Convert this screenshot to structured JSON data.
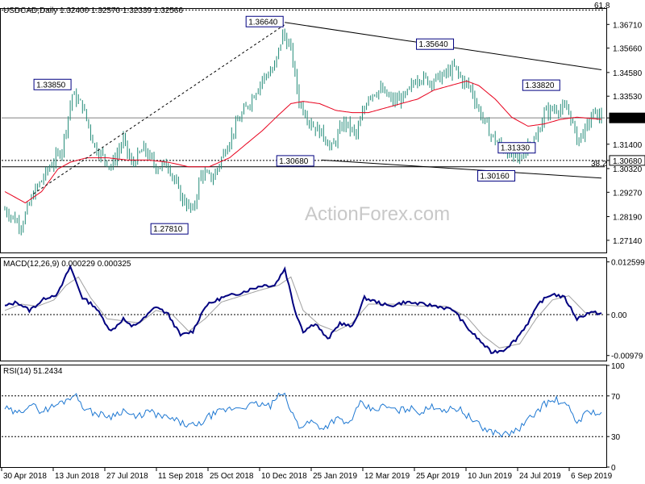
{
  "header": {
    "price_title": "USDCAD,Daily  1.32400  1.32570  1.32339  1.32566",
    "macd_title": "MACD(12,26,9) 0.000229 0.000325",
    "rsi_title": "RSI(14) 51.2434",
    "fib_618": "61.8",
    "fib_382": "38.2",
    "watermark": "ActionForex.com"
  },
  "colors": {
    "candle": "#228b78",
    "ma": "#e8001c",
    "macd": "#000080",
    "signal": "#a0a0a0",
    "rsi": "#1e78d2",
    "trend": "#000000",
    "label_box": "#000080",
    "grid_dot": "#000000"
  },
  "chart_data": [
    {
      "type": "candlestick",
      "panel": "price",
      "ylim": [
        1.266,
        1.374
      ],
      "y_ticks": [
        "1.36710",
        "1.35660",
        "1.34580",
        "1.33530",
        "1.32566",
        "1.31400",
        "1.30680",
        "1.30320",
        "1.29270",
        "1.28190",
        "1.27140"
      ],
      "y_tick_values": [
        1.3671,
        1.3566,
        1.3458,
        1.3353,
        1.32566,
        1.314,
        1.3068,
        1.3032,
        1.2927,
        1.2819,
        1.2714
      ],
      "current_price": "1.32566",
      "level_1_3068": "1.30680",
      "x_labels": [
        "30 Apr 2018",
        "13 Jun 2018",
        "27 Jul 2018",
        "11 Sep 2018",
        "25 Oct 2018",
        "10 Dec 2018",
        "25 Jan 2019",
        "12 Mar 2019",
        "25 Apr 2019",
        "10 Jun 2019",
        "24 Jul 2019",
        "6 Sep 2019"
      ],
      "swing_labels": [
        {
          "text": "1.36640",
          "date": "31 Dec 2018",
          "value": 1.3664
        },
        {
          "text": "1.33850",
          "date": "27 Jun 2018",
          "value": 1.3385
        },
        {
          "text": "1.27810",
          "date": "1 Oct 2018",
          "value": 1.2781
        },
        {
          "text": "1.30680",
          "date": "31 Jan 2019",
          "value": 1.3068
        },
        {
          "text": "1.35640",
          "date": "2 May 2019",
          "value": 1.3564
        },
        {
          "text": "1.30160",
          "date": "19 Jul 2019",
          "value": 1.3016
        },
        {
          "text": "1.33820",
          "date": "26 Aug 2019",
          "value": 1.3382
        },
        {
          "text": "1.31330",
          "date": "2 Sep 2019",
          "value": 1.3133
        }
      ],
      "anchors": [
        {
          "i": 0,
          "v": 1.285
        },
        {
          "i": 8,
          "v": 1.278
        },
        {
          "i": 14,
          "v": 1.292
        },
        {
          "i": 22,
          "v": 1.304
        },
        {
          "i": 28,
          "v": 1.312
        },
        {
          "i": 33,
          "v": 1.336
        },
        {
          "i": 38,
          "v": 1.331
        },
        {
          "i": 44,
          "v": 1.313
        },
        {
          "i": 52,
          "v": 1.304
        },
        {
          "i": 58,
          "v": 1.316
        },
        {
          "i": 62,
          "v": 1.305
        },
        {
          "i": 68,
          "v": 1.312
        },
        {
          "i": 74,
          "v": 1.304
        },
        {
          "i": 80,
          "v": 1.305
        },
        {
          "i": 86,
          "v": 1.291
        },
        {
          "i": 92,
          "v": 1.284
        },
        {
          "i": 96,
          "v": 1.301
        },
        {
          "i": 102,
          "v": 1.299
        },
        {
          "i": 108,
          "v": 1.312
        },
        {
          "i": 114,
          "v": 1.324
        },
        {
          "i": 120,
          "v": 1.333
        },
        {
          "i": 126,
          "v": 1.343
        },
        {
          "i": 132,
          "v": 1.348
        },
        {
          "i": 136,
          "v": 1.363
        },
        {
          "i": 140,
          "v": 1.356
        },
        {
          "i": 144,
          "v": 1.333
        },
        {
          "i": 150,
          "v": 1.323
        },
        {
          "i": 156,
          "v": 1.318
        },
        {
          "i": 160,
          "v": 1.312
        },
        {
          "i": 166,
          "v": 1.324
        },
        {
          "i": 172,
          "v": 1.318
        },
        {
          "i": 178,
          "v": 1.336
        },
        {
          "i": 184,
          "v": 1.338
        },
        {
          "i": 190,
          "v": 1.333
        },
        {
          "i": 196,
          "v": 1.335
        },
        {
          "i": 202,
          "v": 1.344
        },
        {
          "i": 208,
          "v": 1.342
        },
        {
          "i": 214,
          "v": 1.344
        },
        {
          "i": 220,
          "v": 1.348
        },
        {
          "i": 224,
          "v": 1.342
        },
        {
          "i": 228,
          "v": 1.339
        },
        {
          "i": 232,
          "v": 1.329
        },
        {
          "i": 238,
          "v": 1.318
        },
        {
          "i": 244,
          "v": 1.312
        },
        {
          "i": 248,
          "v": 1.309
        },
        {
          "i": 252,
          "v": 1.307
        },
        {
          "i": 256,
          "v": 1.314
        },
        {
          "i": 260,
          "v": 1.316
        },
        {
          "i": 264,
          "v": 1.328
        },
        {
          "i": 270,
          "v": 1.33
        },
        {
          "i": 276,
          "v": 1.329
        },
        {
          "i": 280,
          "v": 1.316
        },
        {
          "i": 284,
          "v": 1.32
        },
        {
          "i": 288,
          "v": 1.328
        },
        {
          "i": 292,
          "v": 1.326
        }
      ],
      "ma_anchors": [
        {
          "i": 0,
          "v": 1.293
        },
        {
          "i": 10,
          "v": 1.288
        },
        {
          "i": 18,
          "v": 1.293
        },
        {
          "i": 26,
          "v": 1.303
        },
        {
          "i": 32,
          "v": 1.306
        },
        {
          "i": 40,
          "v": 1.308
        },
        {
          "i": 50,
          "v": 1.308
        },
        {
          "i": 60,
          "v": 1.307
        },
        {
          "i": 70,
          "v": 1.307
        },
        {
          "i": 80,
          "v": 1.306
        },
        {
          "i": 90,
          "v": 1.304
        },
        {
          "i": 100,
          "v": 1.304
        },
        {
          "i": 110,
          "v": 1.308
        },
        {
          "i": 118,
          "v": 1.314
        },
        {
          "i": 126,
          "v": 1.32
        },
        {
          "i": 134,
          "v": 1.327
        },
        {
          "i": 140,
          "v": 1.332
        },
        {
          "i": 146,
          "v": 1.333
        },
        {
          "i": 154,
          "v": 1.332
        },
        {
          "i": 162,
          "v": 1.329
        },
        {
          "i": 170,
          "v": 1.328
        },
        {
          "i": 178,
          "v": 1.328
        },
        {
          "i": 186,
          "v": 1.33
        },
        {
          "i": 194,
          "v": 1.332
        },
        {
          "i": 202,
          "v": 1.334
        },
        {
          "i": 210,
          "v": 1.338
        },
        {
          "i": 218,
          "v": 1.34
        },
        {
          "i": 226,
          "v": 1.342
        },
        {
          "i": 232,
          "v": 1.34
        },
        {
          "i": 240,
          "v": 1.334
        },
        {
          "i": 248,
          "v": 1.326
        },
        {
          "i": 256,
          "v": 1.322
        },
        {
          "i": 264,
          "v": 1.323
        },
        {
          "i": 272,
          "v": 1.325
        },
        {
          "i": 280,
          "v": 1.326
        },
        {
          "i": 292,
          "v": 1.325
        }
      ],
      "total_bars": 293,
      "trendlines": [
        {
          "from": {
            "i": 14,
            "v": 1.292
          },
          "to": {
            "i": 137,
            "v": 1.367
          },
          "style": "dashed"
        },
        {
          "from": {
            "i": 137,
            "v": 1.368
          },
          "to": {
            "i": 292,
            "v": 1.347
          },
          "style": "solid"
        },
        {
          "from": {
            "i": 155,
            "v": 1.307
          },
          "to": {
            "i": 292,
            "v": 1.299
          },
          "style": "solid"
        }
      ]
    },
    {
      "type": "line",
      "panel": "macd",
      "ylim": [
        -0.011,
        0.0135
      ],
      "y_ticks": [
        "0.012599",
        "0.00",
        "-0.00979"
      ],
      "y_tick_values": [
        0.012599,
        0.0,
        -0.00979
      ],
      "macd_anchors": [
        {
          "i": 0,
          "v": 0.002
        },
        {
          "i": 6,
          "v": 0.003
        },
        {
          "i": 12,
          "v": 0.001
        },
        {
          "i": 20,
          "v": 0.004
        },
        {
          "i": 26,
          "v": 0.005
        },
        {
          "i": 32,
          "v": 0.0115
        },
        {
          "i": 38,
          "v": 0.004
        },
        {
          "i": 44,
          "v": 0.002
        },
        {
          "i": 52,
          "v": -0.004
        },
        {
          "i": 58,
          "v": -0.001
        },
        {
          "i": 62,
          "v": -0.003
        },
        {
          "i": 68,
          "v": -0.001
        },
        {
          "i": 74,
          "v": 0.002
        },
        {
          "i": 80,
          "v": 0.0
        },
        {
          "i": 86,
          "v": -0.005
        },
        {
          "i": 92,
          "v": -0.004
        },
        {
          "i": 98,
          "v": 0.002
        },
        {
          "i": 106,
          "v": 0.004
        },
        {
          "i": 114,
          "v": 0.005
        },
        {
          "i": 120,
          "v": 0.006
        },
        {
          "i": 126,
          "v": 0.007
        },
        {
          "i": 132,
          "v": 0.007
        },
        {
          "i": 137,
          "v": 0.011
        },
        {
          "i": 142,
          "v": 0.001
        },
        {
          "i": 146,
          "v": -0.004
        },
        {
          "i": 152,
          "v": -0.002
        },
        {
          "i": 158,
          "v": -0.006
        },
        {
          "i": 164,
          "v": -0.002
        },
        {
          "i": 170,
          "v": -0.003
        },
        {
          "i": 176,
          "v": 0.004
        },
        {
          "i": 182,
          "v": 0.003
        },
        {
          "i": 188,
          "v": 0.002
        },
        {
          "i": 196,
          "v": 0.003
        },
        {
          "i": 204,
          "v": 0.0025
        },
        {
          "i": 212,
          "v": 0.002
        },
        {
          "i": 220,
          "v": 0.001
        },
        {
          "i": 226,
          "v": -0.003
        },
        {
          "i": 232,
          "v": -0.006
        },
        {
          "i": 238,
          "v": -0.009
        },
        {
          "i": 244,
          "v": -0.0085
        },
        {
          "i": 250,
          "v": -0.006
        },
        {
          "i": 256,
          "v": -0.002
        },
        {
          "i": 262,
          "v": 0.003
        },
        {
          "i": 268,
          "v": 0.005
        },
        {
          "i": 274,
          "v": 0.004
        },
        {
          "i": 280,
          "v": -0.001
        },
        {
          "i": 286,
          "v": 0.0005
        },
        {
          "i": 292,
          "v": 0.0003
        }
      ],
      "signal_anchors": [
        {
          "i": 0,
          "v": 0.001
        },
        {
          "i": 8,
          "v": 0.0025
        },
        {
          "i": 16,
          "v": 0.002
        },
        {
          "i": 24,
          "v": 0.0035
        },
        {
          "i": 30,
          "v": 0.007
        },
        {
          "i": 36,
          "v": 0.009
        },
        {
          "i": 42,
          "v": 0.004
        },
        {
          "i": 50,
          "v": -0.001
        },
        {
          "i": 58,
          "v": -0.0015
        },
        {
          "i": 66,
          "v": -0.002
        },
        {
          "i": 74,
          "v": 0.001
        },
        {
          "i": 82,
          "v": 0.0
        },
        {
          "i": 90,
          "v": -0.004
        },
        {
          "i": 98,
          "v": -0.001
        },
        {
          "i": 106,
          "v": 0.003
        },
        {
          "i": 116,
          "v": 0.0045
        },
        {
          "i": 126,
          "v": 0.006
        },
        {
          "i": 134,
          "v": 0.007
        },
        {
          "i": 140,
          "v": 0.009
        },
        {
          "i": 146,
          "v": 0.001
        },
        {
          "i": 154,
          "v": -0.0025
        },
        {
          "i": 162,
          "v": -0.004
        },
        {
          "i": 170,
          "v": -0.002
        },
        {
          "i": 178,
          "v": 0.0025
        },
        {
          "i": 190,
          "v": 0.0025
        },
        {
          "i": 204,
          "v": 0.002
        },
        {
          "i": 216,
          "v": 0.002
        },
        {
          "i": 226,
          "v": -0.0005
        },
        {
          "i": 234,
          "v": -0.005
        },
        {
          "i": 242,
          "v": -0.008
        },
        {
          "i": 252,
          "v": -0.007
        },
        {
          "i": 260,
          "v": -0.001
        },
        {
          "i": 268,
          "v": 0.0035
        },
        {
          "i": 276,
          "v": 0.0045
        },
        {
          "i": 284,
          "v": 0.0005
        },
        {
          "i": 292,
          "v": 0.0003
        }
      ]
    },
    {
      "type": "line",
      "panel": "rsi",
      "ylim": [
        0,
        100
      ],
      "y_ticks": [
        "100",
        "70",
        "30",
        "0"
      ],
      "y_tick_values": [
        100,
        70,
        30,
        0
      ],
      "rsi_anchors": [
        {
          "i": 0,
          "v": 58
        },
        {
          "i": 6,
          "v": 52
        },
        {
          "i": 12,
          "v": 62
        },
        {
          "i": 18,
          "v": 55
        },
        {
          "i": 24,
          "v": 60
        },
        {
          "i": 30,
          "v": 66
        },
        {
          "i": 34,
          "v": 72
        },
        {
          "i": 40,
          "v": 56
        },
        {
          "i": 46,
          "v": 52
        },
        {
          "i": 52,
          "v": 50
        },
        {
          "i": 58,
          "v": 56
        },
        {
          "i": 64,
          "v": 48
        },
        {
          "i": 70,
          "v": 55
        },
        {
          "i": 76,
          "v": 50
        },
        {
          "i": 82,
          "v": 47
        },
        {
          "i": 88,
          "v": 42
        },
        {
          "i": 94,
          "v": 40
        },
        {
          "i": 100,
          "v": 50
        },
        {
          "i": 106,
          "v": 55
        },
        {
          "i": 112,
          "v": 58
        },
        {
          "i": 118,
          "v": 60
        },
        {
          "i": 124,
          "v": 62
        },
        {
          "i": 130,
          "v": 60
        },
        {
          "i": 136,
          "v": 74
        },
        {
          "i": 140,
          "v": 55
        },
        {
          "i": 144,
          "v": 40
        },
        {
          "i": 150,
          "v": 45
        },
        {
          "i": 156,
          "v": 38
        },
        {
          "i": 162,
          "v": 48
        },
        {
          "i": 168,
          "v": 42
        },
        {
          "i": 174,
          "v": 62
        },
        {
          "i": 180,
          "v": 56
        },
        {
          "i": 186,
          "v": 60
        },
        {
          "i": 192,
          "v": 55
        },
        {
          "i": 198,
          "v": 58
        },
        {
          "i": 204,
          "v": 54
        },
        {
          "i": 210,
          "v": 60
        },
        {
          "i": 216,
          "v": 56
        },
        {
          "i": 222,
          "v": 58
        },
        {
          "i": 228,
          "v": 48
        },
        {
          "i": 234,
          "v": 38
        },
        {
          "i": 240,
          "v": 34
        },
        {
          "i": 246,
          "v": 32
        },
        {
          "i": 252,
          "v": 38
        },
        {
          "i": 258,
          "v": 50
        },
        {
          "i": 264,
          "v": 62
        },
        {
          "i": 270,
          "v": 66
        },
        {
          "i": 276,
          "v": 58
        },
        {
          "i": 280,
          "v": 44
        },
        {
          "i": 286,
          "v": 56
        },
        {
          "i": 292,
          "v": 51
        }
      ]
    }
  ]
}
